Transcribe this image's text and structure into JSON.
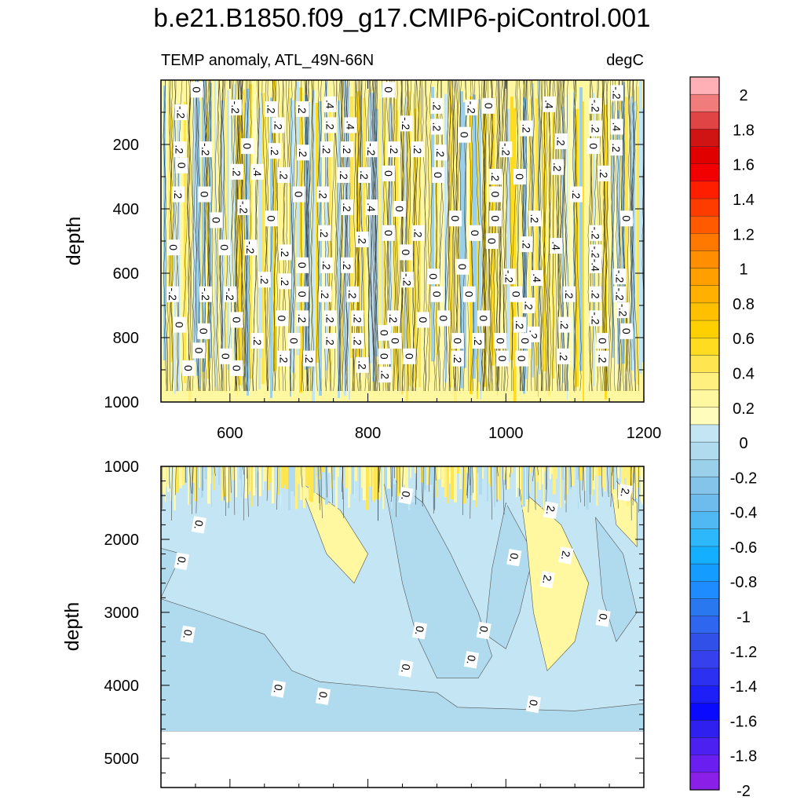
{
  "chart_data": [
    {
      "type": "heatmap",
      "panel": "upper",
      "title": "b.e21.B1850.f09_g17.CMIP6-piControl.001",
      "subtitle_left": "TEMP anomaly, ATL_49N-66N",
      "subtitle_right": "degC",
      "xlabel": "",
      "ylabel": "depth",
      "xlim": [
        500,
        1200
      ],
      "ylim": [
        1000,
        0
      ],
      "x_ticks": [
        "600",
        "800",
        "1000",
        "1200"
      ],
      "y_ticks": [
        "200",
        "400",
        "600",
        "800",
        "1000"
      ],
      "contour_labels": [
        {
          "x": 552,
          "y": 30,
          "t": "0"
        },
        {
          "x": 608,
          "y": 85,
          "t": "-.2"
        },
        {
          "x": 660,
          "y": 90,
          "t": ".2"
        },
        {
          "x": 705,
          "y": 90,
          "t": ".2"
        },
        {
          "x": 745,
          "y": 75,
          "t": ".4"
        },
        {
          "x": 830,
          "y": 30,
          "t": "0"
        },
        {
          "x": 900,
          "y": 80,
          "t": ".2"
        },
        {
          "x": 950,
          "y": 85,
          "t": "-.2"
        },
        {
          "x": 975,
          "y": 80,
          "t": "0"
        },
        {
          "x": 1063,
          "y": 75,
          "t": ".4"
        },
        {
          "x": 1130,
          "y": 80,
          "t": "-.2"
        },
        {
          "x": 1161,
          "y": 40,
          "t": "-.2"
        },
        {
          "x": 529,
          "y": 100,
          "t": "-.2"
        },
        {
          "x": 670,
          "y": 140,
          "t": ".2"
        },
        {
          "x": 745,
          "y": 140,
          "t": ".2"
        },
        {
          "x": 775,
          "y": 140,
          "t": ".4"
        },
        {
          "x": 855,
          "y": 135,
          "t": "-.2"
        },
        {
          "x": 900,
          "y": 145,
          "t": ".2"
        },
        {
          "x": 940,
          "y": 170,
          "t": "0"
        },
        {
          "x": 1030,
          "y": 150,
          "t": ".2"
        },
        {
          "x": 1130,
          "y": 150,
          "t": ".2"
        },
        {
          "x": 1161,
          "y": 145,
          "t": ".4"
        },
        {
          "x": 527,
          "y": 215,
          "t": ".2"
        },
        {
          "x": 565,
          "y": 215,
          "t": "-.2"
        },
        {
          "x": 625,
          "y": 205,
          "t": "0"
        },
        {
          "x": 665,
          "y": 220,
          "t": ".2"
        },
        {
          "x": 706,
          "y": 225,
          "t": ".2"
        },
        {
          "x": 740,
          "y": 215,
          "t": ".2"
        },
        {
          "x": 770,
          "y": 215,
          "t": ".2"
        },
        {
          "x": 805,
          "y": 215,
          "t": "-.2"
        },
        {
          "x": 838,
          "y": 215,
          "t": ".2"
        },
        {
          "x": 872,
          "y": 215,
          "t": ".2"
        },
        {
          "x": 905,
          "y": 225,
          "t": ".2"
        },
        {
          "x": 1000,
          "y": 215,
          "t": "-.2"
        },
        {
          "x": 1080,
          "y": 190,
          "t": ".2"
        },
        {
          "x": 1127,
          "y": 205,
          "t": "0"
        },
        {
          "x": 1160,
          "y": 210,
          "t": ".2"
        },
        {
          "x": 530,
          "y": 265,
          "t": "0"
        },
        {
          "x": 610,
          "y": 285,
          "t": ".2"
        },
        {
          "x": 640,
          "y": 285,
          "t": ".4"
        },
        {
          "x": 678,
          "y": 295,
          "t": ".2"
        },
        {
          "x": 765,
          "y": 295,
          "t": ".2"
        },
        {
          "x": 795,
          "y": 295,
          "t": ".2"
        },
        {
          "x": 830,
          "y": 290,
          "t": "0"
        },
        {
          "x": 902,
          "y": 295,
          "t": "0"
        },
        {
          "x": 985,
          "y": 300,
          "t": ".2"
        },
        {
          "x": 1020,
          "y": 300,
          "t": "0"
        },
        {
          "x": 1075,
          "y": 270,
          "t": ".2"
        },
        {
          "x": 1142,
          "y": 290,
          "t": ".2"
        },
        {
          "x": 525,
          "y": 355,
          "t": ".2"
        },
        {
          "x": 563,
          "y": 355,
          "t": "0"
        },
        {
          "x": 700,
          "y": 355,
          "t": "0"
        },
        {
          "x": 735,
          "y": 355,
          "t": ".2"
        },
        {
          "x": 1102,
          "y": 355,
          "t": ".2"
        },
        {
          "x": 620,
          "y": 395,
          "t": "-.2"
        },
        {
          "x": 770,
          "y": 395,
          "t": ".2"
        },
        {
          "x": 805,
          "y": 395,
          "t": ".4"
        },
        {
          "x": 846,
          "y": 400,
          "t": "0"
        },
        {
          "x": 985,
          "y": 355,
          "t": "0"
        },
        {
          "x": 580,
          "y": 435,
          "t": "0"
        },
        {
          "x": 660,
          "y": 430,
          "t": "0"
        },
        {
          "x": 927,
          "y": 430,
          "t": "0"
        },
        {
          "x": 985,
          "y": 430,
          "t": "0"
        },
        {
          "x": 1042,
          "y": 430,
          "t": ".2"
        },
        {
          "x": 1175,
          "y": 430,
          "t": "0"
        },
        {
          "x": 737,
          "y": 475,
          "t": ".2"
        },
        {
          "x": 830,
          "y": 475,
          "t": "0"
        },
        {
          "x": 873,
          "y": 475,
          "t": ".2"
        },
        {
          "x": 955,
          "y": 475,
          "t": "0"
        },
        {
          "x": 1130,
          "y": 475,
          "t": "-.2"
        },
        {
          "x": 792,
          "y": 495,
          "t": ".2"
        },
        {
          "x": 980,
          "y": 500,
          "t": "0"
        },
        {
          "x": 1030,
          "y": 510,
          "t": ".2"
        },
        {
          "x": 1073,
          "y": 515,
          "t": ".4"
        },
        {
          "x": 518,
          "y": 520,
          "t": "0"
        },
        {
          "x": 592,
          "y": 520,
          "t": "0"
        },
        {
          "x": 630,
          "y": 520,
          "t": "-.2"
        },
        {
          "x": 680,
          "y": 535,
          "t": ".2"
        },
        {
          "x": 855,
          "y": 535,
          "t": "0"
        },
        {
          "x": 1130,
          "y": 535,
          "t": "-.2"
        },
        {
          "x": 705,
          "y": 575,
          "t": "0"
        },
        {
          "x": 740,
          "y": 575,
          "t": ".2"
        },
        {
          "x": 770,
          "y": 575,
          "t": ".2"
        },
        {
          "x": 937,
          "y": 580,
          "t": "0"
        },
        {
          "x": 1130,
          "y": 575,
          "t": "-.4"
        },
        {
          "x": 650,
          "y": 620,
          "t": ".2"
        },
        {
          "x": 680,
          "y": 625,
          "t": ".2"
        },
        {
          "x": 857,
          "y": 620,
          "t": "-.2"
        },
        {
          "x": 895,
          "y": 610,
          "t": "0"
        },
        {
          "x": 1005,
          "y": 610,
          "t": "-.2"
        },
        {
          "x": 1045,
          "y": 615,
          "t": ".4"
        },
        {
          "x": 1165,
          "y": 610,
          "t": "-.2"
        },
        {
          "x": 517,
          "y": 665,
          "t": "-.2"
        },
        {
          "x": 565,
          "y": 665,
          "t": "-.2"
        },
        {
          "x": 600,
          "y": 665,
          "t": "-.2"
        },
        {
          "x": 705,
          "y": 665,
          "t": "0"
        },
        {
          "x": 738,
          "y": 665,
          "t": ".2"
        },
        {
          "x": 778,
          "y": 665,
          "t": ".2"
        },
        {
          "x": 900,
          "y": 665,
          "t": "0"
        },
        {
          "x": 947,
          "y": 665,
          "t": "0"
        },
        {
          "x": 1015,
          "y": 665,
          "t": "0"
        },
        {
          "x": 1092,
          "y": 665,
          "t": ".2"
        },
        {
          "x": 1130,
          "y": 665,
          "t": ".2"
        },
        {
          "x": 1165,
          "y": 665,
          "t": "-.2"
        },
        {
          "x": 1033,
          "y": 700,
          "t": ".2"
        },
        {
          "x": 1170,
          "y": 715,
          "t": "-.2"
        },
        {
          "x": 675,
          "y": 740,
          "t": "0"
        },
        {
          "x": 705,
          "y": 740,
          "t": ".2"
        },
        {
          "x": 745,
          "y": 740,
          "t": ".2"
        },
        {
          "x": 785,
          "y": 740,
          "t": ".2"
        },
        {
          "x": 837,
          "y": 740,
          "t": ".2"
        },
        {
          "x": 880,
          "y": 745,
          "t": "0"
        },
        {
          "x": 910,
          "y": 740,
          "t": "0"
        },
        {
          "x": 968,
          "y": 740,
          "t": "0"
        },
        {
          "x": 1130,
          "y": 740,
          "t": "-.2"
        },
        {
          "x": 527,
          "y": 760,
          "t": "0"
        },
        {
          "x": 610,
          "y": 745,
          "t": "0"
        },
        {
          "x": 562,
          "y": 780,
          "t": "0"
        },
        {
          "x": 1020,
          "y": 760,
          "t": ".2"
        },
        {
          "x": 1085,
          "y": 760,
          "t": ".2"
        },
        {
          "x": 1175,
          "y": 780,
          "t": "0"
        },
        {
          "x": 824,
          "y": 785,
          "t": "0"
        },
        {
          "x": 1040,
          "y": 790,
          "t": ".2"
        },
        {
          "x": 640,
          "y": 810,
          "t": ".2"
        },
        {
          "x": 693,
          "y": 810,
          "t": "0"
        },
        {
          "x": 745,
          "y": 810,
          "t": ".2"
        },
        {
          "x": 785,
          "y": 810,
          "t": ".2"
        },
        {
          "x": 840,
          "y": 810,
          "t": "0"
        },
        {
          "x": 930,
          "y": 810,
          "t": "0"
        },
        {
          "x": 960,
          "y": 810,
          "t": ".2"
        },
        {
          "x": 992,
          "y": 810,
          "t": "0"
        },
        {
          "x": 1028,
          "y": 810,
          "t": "0"
        },
        {
          "x": 1140,
          "y": 810,
          "t": "0"
        },
        {
          "x": 555,
          "y": 840,
          "t": "0"
        },
        {
          "x": 594,
          "y": 858,
          "t": "0"
        },
        {
          "x": 824,
          "y": 858,
          "t": "0"
        },
        {
          "x": 860,
          "y": 858,
          "t": "0"
        },
        {
          "x": 1084,
          "y": 858,
          "t": ".2"
        },
        {
          "x": 678,
          "y": 865,
          "t": ".2"
        },
        {
          "x": 715,
          "y": 865,
          "t": ".2"
        },
        {
          "x": 930,
          "y": 865,
          "t": ".2"
        },
        {
          "x": 995,
          "y": 865,
          "t": "0"
        },
        {
          "x": 1023,
          "y": 865,
          "t": "0"
        },
        {
          "x": 1140,
          "y": 865,
          "t": ".2"
        },
        {
          "x": 792,
          "y": 885,
          "t": ".2"
        },
        {
          "x": 540,
          "y": 895,
          "t": "0"
        },
        {
          "x": 610,
          "y": 895,
          "t": "0"
        },
        {
          "x": 825,
          "y": 915,
          "t": ".2"
        }
      ]
    },
    {
      "type": "heatmap",
      "panel": "lower",
      "xlabel": "",
      "ylabel": "depth",
      "xlim": [
        500,
        1200
      ],
      "ylim": [
        5400,
        1000
      ],
      "x_ticks": [],
      "y_ticks": [
        "1000",
        "2000",
        "3000",
        "4000",
        "5000"
      ],
      "bottom_depth": 4630,
      "contour_labels": [
        {
          "x": 855,
          "y": 1400,
          "t": "0."
        },
        {
          "x": 555,
          "y": 1800,
          "t": "0."
        },
        {
          "x": 530,
          "y": 2300,
          "t": "0."
        },
        {
          "x": 1065,
          "y": 1600,
          "t": "2."
        },
        {
          "x": 1012,
          "y": 2250,
          "t": "0."
        },
        {
          "x": 1087,
          "y": 2220,
          "t": "2."
        },
        {
          "x": 1060,
          "y": 2550,
          "t": "2."
        },
        {
          "x": 1173,
          "y": 1360,
          "t": "2."
        },
        {
          "x": 539,
          "y": 3300,
          "t": "0."
        },
        {
          "x": 875,
          "y": 3250,
          "t": "0."
        },
        {
          "x": 968,
          "y": 3250,
          "t": "0."
        },
        {
          "x": 1141,
          "y": 3080,
          "t": "0."
        },
        {
          "x": 950,
          "y": 3650,
          "t": "0."
        },
        {
          "x": 855,
          "y": 3770,
          "t": "0."
        },
        {
          "x": 670,
          "y": 4050,
          "t": "0."
        },
        {
          "x": 735,
          "y": 4150,
          "t": "0."
        },
        {
          "x": 1040,
          "y": 4260,
          "t": "0."
        }
      ]
    },
    {
      "type": "colorbar",
      "levels": [
        "2",
        "1.8",
        "1.6",
        "1.4",
        "1.2",
        "1",
        "0.8",
        "0.6",
        "0.4",
        "0.2",
        "0",
        "-0.2",
        "-0.4",
        "-0.6",
        "-0.8",
        "-1",
        "-1.2",
        "-1.4",
        "-1.6",
        "-1.8",
        "-2"
      ],
      "colors": [
        "#ffb0b6",
        "#f07c7c",
        "#e04444",
        "#d01414",
        "#e00000",
        "#f20000",
        "#ff1e00",
        "#ff3c00",
        "#ff5a00",
        "#ff7800",
        "#ff8e00",
        "#ffa000",
        "#ffb000",
        "#ffc000",
        "#ffd000",
        "#ffdc20",
        "#ffe650",
        "#fff080",
        "#fff8a0",
        "#fffcbc",
        "#c4e6f4",
        "#b0dbee",
        "#9ad0ea",
        "#84c4ea",
        "#6ebbee",
        "#50b8f2",
        "#2cb8fa",
        "#14b0ff",
        "#149cff",
        "#1e8cff",
        "#2a78f0",
        "#2e66f0",
        "#3050e8",
        "#3640ec",
        "#2c30f0",
        "#1e1ef6",
        "#0a0aff",
        "#3020f0",
        "#4c20f0",
        "#6a1ef0",
        "#8a20e8"
      ]
    }
  ]
}
